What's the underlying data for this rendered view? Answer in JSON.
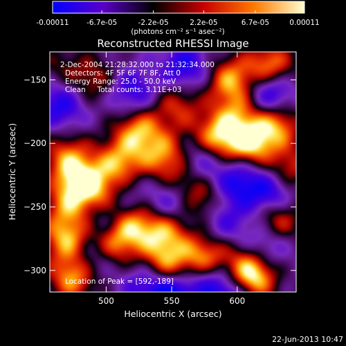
{
  "colorbar": {
    "tick_labels": [
      "-0.00011",
      "-6.7e-05",
      "-2.2e-05",
      "2.2e-05",
      "6.7e-05",
      "0.00011"
    ],
    "tick_values": [
      -0.00011,
      -6.7e-05,
      -2.2e-05,
      2.2e-05,
      6.7e-05,
      0.00011
    ],
    "range": [
      -0.00011,
      0.00011
    ],
    "units_label": "(photons cm⁻² s⁻¹ asec⁻²)",
    "colors": [
      "#0000ff",
      "#5a00c8",
      "#000000",
      "#c80000",
      "#ff7a00",
      "#ffffd0"
    ]
  },
  "chart_data": {
    "type": "heatmap",
    "title": "Reconstructed RHESSI Image",
    "xlabel": "Heliocentric X (arcsec)",
    "ylabel": "Heliocentric Y (arcsec)",
    "xlim": [
      457,
      645
    ],
    "ylim": [
      -317,
      -128
    ],
    "xticks": [
      500,
      550,
      600
    ],
    "yticks": [
      -300,
      -250,
      -200,
      -150
    ],
    "xtick_labels": [
      "500",
      "550",
      "600"
    ],
    "ytick_labels": [
      "-300",
      "-250",
      "-200",
      "-150"
    ],
    "annotations": [
      "2-Dec-2004 21:28:32.000 to 21:32:34.000",
      "Detectors: 4F 5F 6F 7F 8F, Att 0",
      "Energy Range: 25.0 - 50.0 keV",
      "Clean     Total counts: 3.11E+03",
      "Location of Peak = [592,-189]"
    ],
    "peak_location": [
      592,
      -189
    ],
    "blobs": [
      {
        "x": 625,
        "y": -140,
        "v": 0.95
      },
      {
        "x": 595,
        "y": -150,
        "v": 0.85
      },
      {
        "x": 610,
        "y": -200,
        "v": 1.0
      },
      {
        "x": 585,
        "y": -195,
        "v": 0.95
      },
      {
        "x": 630,
        "y": -185,
        "v": 0.85
      },
      {
        "x": 525,
        "y": -190,
        "v": 0.9
      },
      {
        "x": 545,
        "y": -210,
        "v": 0.8
      },
      {
        "x": 510,
        "y": -215,
        "v": 0.85
      },
      {
        "x": 480,
        "y": -230,
        "v": 1.0
      },
      {
        "x": 500,
        "y": -240,
        "v": 0.8
      },
      {
        "x": 470,
        "y": -210,
        "v": 0.7
      },
      {
        "x": 470,
        "y": -275,
        "v": 0.9
      },
      {
        "x": 520,
        "y": -265,
        "v": 0.85
      },
      {
        "x": 545,
        "y": -270,
        "v": 0.8
      },
      {
        "x": 505,
        "y": -280,
        "v": 0.75
      },
      {
        "x": 630,
        "y": -260,
        "v": 0.8
      },
      {
        "x": 575,
        "y": -290,
        "v": 0.9
      },
      {
        "x": 545,
        "y": -295,
        "v": 0.85
      },
      {
        "x": 475,
        "y": -305,
        "v": 0.95
      },
      {
        "x": 610,
        "y": -310,
        "v": 0.7
      },
      {
        "x": 610,
        "y": -305,
        "v": 0.6
      },
      {
        "x": 490,
        "y": -150,
        "v": 0.5
      },
      {
        "x": 555,
        "y": -170,
        "v": 0.6
      },
      {
        "x": 640,
        "y": -220,
        "v": 0.6
      },
      {
        "x": 560,
        "y": -230,
        "v": 0.55
      },
      {
        "x": 575,
        "y": -245,
        "v": 0.55
      },
      {
        "x": 610,
        "y": -290,
        "v": 0.5
      },
      {
        "x": 470,
        "y": -250,
        "v": 0.6
      },
      {
        "x": 600,
        "y": -175,
        "v": 0.6
      },
      {
        "x": 465,
        "y": -140,
        "v": 0.3
      },
      {
        "x": 560,
        "y": -140,
        "v": -0.7
      },
      {
        "x": 625,
        "y": -160,
        "v": -0.9
      },
      {
        "x": 520,
        "y": -160,
        "v": -0.6
      },
      {
        "x": 465,
        "y": -170,
        "v": -0.7
      },
      {
        "x": 510,
        "y": -240,
        "v": -0.5
      },
      {
        "x": 570,
        "y": -215,
        "v": -0.6
      },
      {
        "x": 600,
        "y": -230,
        "v": -0.7
      },
      {
        "x": 625,
        "y": -240,
        "v": -0.8
      },
      {
        "x": 550,
        "y": -245,
        "v": -0.6
      },
      {
        "x": 500,
        "y": -260,
        "v": -0.4
      },
      {
        "x": 620,
        "y": -280,
        "v": -0.7
      },
      {
        "x": 590,
        "y": -260,
        "v": -0.5
      },
      {
        "x": 550,
        "y": -320,
        "v": -0.9
      },
      {
        "x": 600,
        "y": -320,
        "v": -0.8
      },
      {
        "x": 530,
        "y": -310,
        "v": -0.5
      },
      {
        "x": 490,
        "y": -290,
        "v": -0.5
      },
      {
        "x": 580,
        "y": -310,
        "v": -0.6
      }
    ]
  },
  "footer": {
    "timestamp": "22-Jun-2013 10:47"
  }
}
